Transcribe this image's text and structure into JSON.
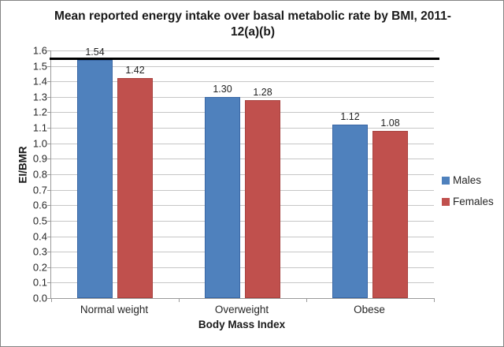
{
  "chart_data": {
    "type": "bar",
    "title": "Mean reported energy intake over basal metabolic rate by BMI, 2011-12(a)(b)",
    "xlabel": "Body Mass Index",
    "ylabel": "EI/BMR",
    "categories": [
      "Normal weight",
      "Overweight",
      "Obese"
    ],
    "series": [
      {
        "name": "Males",
        "color": "#4F81BD",
        "edge_color": "#3A67A5",
        "values": [
          1.54,
          1.3,
          1.12
        ],
        "labels": [
          "1.54",
          "1.30",
          "1.12"
        ]
      },
      {
        "name": "Females",
        "color": "#C0504D",
        "edge_color": "#A8423F",
        "values": [
          1.42,
          1.28,
          1.08
        ],
        "labels": [
          "1.42",
          "1.28",
          "1.08"
        ]
      }
    ],
    "ylim": [
      0.0,
      1.6
    ],
    "ytick_step": 0.1,
    "ytick_labels": [
      "0.0",
      "0.1",
      "0.2",
      "0.3",
      "0.4",
      "0.5",
      "0.6",
      "0.7",
      "0.8",
      "0.9",
      "1.0",
      "1.1",
      "1.2",
      "1.3",
      "1.4",
      "1.5",
      "1.6"
    ],
    "reference_line": {
      "value": 1.55,
      "color": "#000000"
    },
    "grid": true,
    "gridline_color": "#c6c6c6",
    "legend_position": "right"
  }
}
